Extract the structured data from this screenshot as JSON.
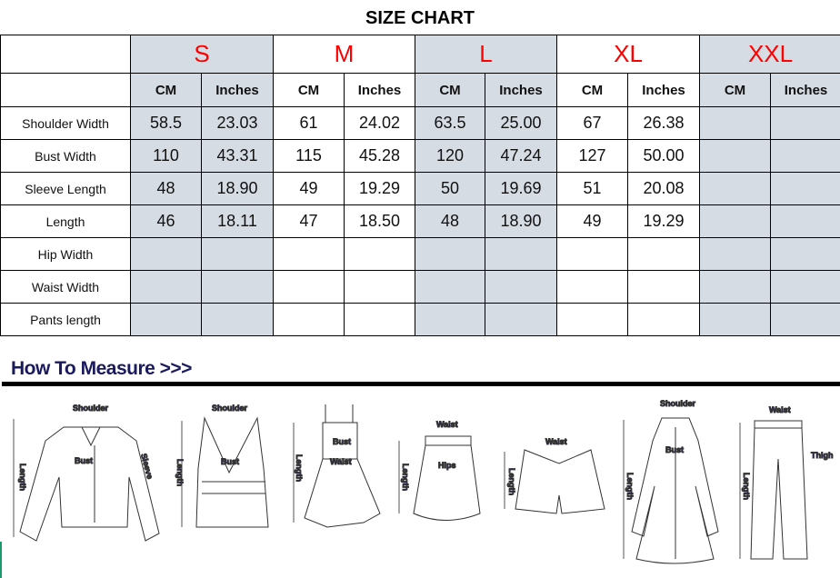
{
  "title": "SIZE CHART",
  "sizes": [
    "S",
    "M",
    "L",
    "XL",
    "XXL"
  ],
  "units": [
    "CM",
    "Inches"
  ],
  "rows": [
    {
      "label": "Shoulder Width",
      "values": [
        "58.5",
        "23.03",
        "61",
        "24.02",
        "63.5",
        "25.00",
        "67",
        "26.38",
        "",
        ""
      ]
    },
    {
      "label": "Bust Width",
      "values": [
        "110",
        "43.31",
        "115",
        "45.28",
        "120",
        "47.24",
        "127",
        "50.00",
        "",
        ""
      ]
    },
    {
      "label": "Sleeve Length",
      "values": [
        "48",
        "18.90",
        "49",
        "19.29",
        "50",
        "19.69",
        "51",
        "20.08",
        "",
        ""
      ]
    },
    {
      "label": "Length",
      "values": [
        "46",
        "18.11",
        "47",
        "18.50",
        "48",
        "18.90",
        "49",
        "19.29",
        "",
        ""
      ]
    },
    {
      "label": "Hip Width",
      "values": [
        "",
        "",
        "",
        "",
        "",
        "",
        "",
        "",
        "",
        ""
      ]
    },
    {
      "label": "Waist Width",
      "values": [
        "",
        "",
        "",
        "",
        "",
        "",
        "",
        "",
        "",
        ""
      ]
    },
    {
      "label": "Pants length",
      "values": [
        "",
        "",
        "",
        "",
        "",
        "",
        "",
        "",
        "",
        ""
      ]
    }
  ],
  "how_to_measure": "How To Measure >>>",
  "colors": {
    "size_label": "#ff0000",
    "shaded_column": "#d6dce4",
    "heading": "#1a1a5e"
  },
  "illustrations": [
    {
      "name": "blouse",
      "labels": [
        "Shoulder",
        "Bust",
        "Sleeve",
        "Length"
      ]
    },
    {
      "name": "vest-top",
      "labels": [
        "Shoulder",
        "Bust",
        "Length"
      ]
    },
    {
      "name": "dress",
      "labels": [
        "Bust",
        "Waist",
        "Length"
      ]
    },
    {
      "name": "skirt",
      "labels": [
        "Waist",
        "Hips",
        "Length"
      ]
    },
    {
      "name": "shorts",
      "labels": [
        "Waist",
        "Length"
      ]
    },
    {
      "name": "coat",
      "labels": [
        "Shoulder",
        "Bust",
        "Length"
      ]
    },
    {
      "name": "pants",
      "labels": [
        "Waist",
        "Thigh",
        "Length"
      ]
    }
  ]
}
